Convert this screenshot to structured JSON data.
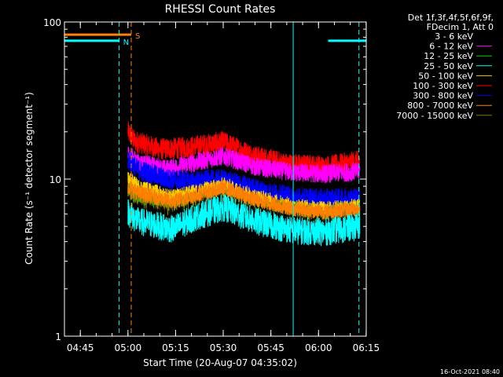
{
  "chart_data": {
    "type": "line",
    "title": "RHESSI Count Rates",
    "xlabel": "Start Time (20-Aug-07 04:35:02)",
    "ylabel": "Count Rate (s⁻¹ detector segment⁻¹)",
    "ylog": true,
    "ylim": [
      1,
      100
    ],
    "xlim_minutes": [
      4.97,
      100.0
    ],
    "x_ticks": [
      {
        "label": "04:45",
        "minute": 9.97
      },
      {
        "label": "05:00",
        "minute": 24.97
      },
      {
        "label": "05:15",
        "minute": 39.97
      },
      {
        "label": "05:30",
        "minute": 54.97
      },
      {
        "label": "05:45",
        "minute": 69.97
      },
      {
        "label": "06:00",
        "minute": 84.97
      },
      {
        "label": "06:15",
        "minute": 99.97
      }
    ],
    "y_ticks": [
      {
        "label": "1",
        "value": 1
      },
      {
        "label": "10",
        "value": 10
      },
      {
        "label": "100",
        "value": 100
      }
    ],
    "legend": {
      "placement": "top-right",
      "header": [
        "Det 1f,3f,4f,5f,6f,9f,",
        "FDecim 1, Att 0"
      ],
      "entries": [
        {
          "label": "3 - 6 keV",
          "color": "#000000"
        },
        {
          "label": "6 - 12 keV",
          "color": "#ff00ff"
        },
        {
          "label": "12 - 25 keV",
          "color": "#00cc00"
        },
        {
          "label": "25 - 50 keV",
          "color": "#00ffff"
        },
        {
          "label": "50 - 100 keV",
          "color": "#ffcc00"
        },
        {
          "label": "100 - 300 keV",
          "color": "#ff0000"
        },
        {
          "label": "300 - 800 keV",
          "color": "#0000ff"
        },
        {
          "label": "800 - 7000 keV",
          "color": "#ff8000"
        },
        {
          "label": "7000 - 15000 keV",
          "color": "#808000"
        }
      ]
    },
    "series": [
      {
        "label": "100 - 300 keV",
        "color": "#ff0000",
        "start": [
          24.97,
          20
        ],
        "points": [
          [
            26.97,
            17.5
          ],
          [
            34.97,
            15.5
          ],
          [
            42.97,
            15.8
          ],
          [
            54.97,
            17.2
          ],
          [
            64.97,
            14.0
          ],
          [
            74.97,
            12.5
          ],
          [
            86.97,
            12.0
          ],
          [
            97.97,
            13.0
          ]
        ],
        "noise": 0.07
      },
      {
        "label": "6 - 12 keV",
        "color": "#ff00ff",
        "start": [
          24.97,
          14.5
        ],
        "points": [
          [
            27.97,
            12.8
          ],
          [
            36.97,
            11.6
          ],
          [
            44.97,
            12.6
          ],
          [
            54.97,
            14.0
          ],
          [
            64.97,
            12.0
          ],
          [
            76.97,
            11.0
          ],
          [
            86.97,
            10.8
          ],
          [
            97.97,
            11.2
          ]
        ],
        "noise": 0.06
      },
      {
        "label": "300 - 800 keV",
        "color": "#0000ff",
        "start": [
          24.97,
          13.5
        ],
        "points": [
          [
            27.97,
            11.5
          ],
          [
            36.97,
            10.0
          ],
          [
            44.97,
            9.6
          ],
          [
            54.97,
            9.9
          ],
          [
            64.97,
            8.6
          ],
          [
            76.97,
            7.6
          ],
          [
            86.97,
            7.4
          ],
          [
            97.97,
            7.6
          ]
        ],
        "noise": 0.07
      },
      {
        "label": "12 - 25 keV",
        "color": "#00cc00",
        "start": [
          24.97,
          9.2
        ],
        "points": [
          [
            27.97,
            8.0
          ],
          [
            38.97,
            6.9
          ],
          [
            46.97,
            7.7
          ],
          [
            54.97,
            8.2
          ],
          [
            64.97,
            7.0
          ],
          [
            76.97,
            6.2
          ],
          [
            86.97,
            6.0
          ],
          [
            97.97,
            6.3
          ]
        ],
        "noise": 0.07
      },
      {
        "label": "50 - 100 keV",
        "color": "#ffcc00",
        "start": [
          24.97,
          10.0
        ],
        "points": [
          [
            27.97,
            8.8
          ],
          [
            38.97,
            7.5
          ],
          [
            46.97,
            8.2
          ],
          [
            54.97,
            9.0
          ],
          [
            64.97,
            7.6
          ],
          [
            76.97,
            6.6
          ],
          [
            86.97,
            6.3
          ],
          [
            97.97,
            6.6
          ]
        ],
        "noise": 0.06
      },
      {
        "label": "7000 - 15000 keV",
        "color": "#808000",
        "start": [
          24.97,
          8.5
        ],
        "points": [
          [
            27.97,
            7.6
          ],
          [
            38.97,
            6.6
          ],
          [
            46.97,
            7.4
          ],
          [
            54.97,
            8.0
          ],
          [
            64.97,
            6.9
          ],
          [
            76.97,
            6.1
          ],
          [
            86.97,
            5.9
          ],
          [
            97.97,
            6.2
          ]
        ],
        "noise": 0.06
      },
      {
        "label": "3 - 6 keV",
        "color": "#000000",
        "start": [
          24.97,
          6.5
        ],
        "points": [
          [
            27.97,
            6.0
          ],
          [
            38.97,
            5.6
          ],
          [
            46.97,
            6.3
          ],
          [
            54.97,
            7.0
          ],
          [
            64.97,
            6.0
          ],
          [
            76.97,
            5.2
          ],
          [
            86.97,
            5.0
          ],
          [
            97.97,
            5.4
          ]
        ],
        "noise": 0.08
      },
      {
        "label": "800 - 7000 keV",
        "color": "#ff8000",
        "start": [
          24.97,
          9.0
        ],
        "points": [
          [
            27.97,
            8.2
          ],
          [
            38.97,
            7.2
          ],
          [
            46.97,
            8.0
          ],
          [
            54.97,
            8.8
          ],
          [
            64.97,
            7.4
          ],
          [
            76.97,
            6.5
          ],
          [
            86.97,
            6.2
          ],
          [
            97.97,
            6.5
          ]
        ],
        "noise": 0.05
      },
      {
        "label": "25 - 50 keV",
        "color": "#00ffff",
        "start": [
          24.97,
          6.2
        ],
        "points": [
          [
            27.97,
            5.4
          ],
          [
            38.97,
            4.8
          ],
          [
            46.97,
            5.8
          ],
          [
            54.97,
            6.6
          ],
          [
            64.97,
            5.4
          ],
          [
            76.97,
            4.7
          ],
          [
            86.97,
            4.6
          ],
          [
            97.97,
            5.0
          ]
        ],
        "noise": 0.09
      }
    ],
    "annotations": [
      {
        "type": "flag-bar",
        "color": "#00ffff",
        "label": "N",
        "segments": [
          [
            4.97,
            22.2
          ],
          [
            88.0,
            100.0
          ]
        ],
        "y": 76
      },
      {
        "type": "flag-bar",
        "color": "#ff8000",
        "label": "S",
        "segments": [
          [
            4.97,
            26.0
          ]
        ],
        "y": 83
      },
      {
        "type": "vline",
        "color": "#00ffff",
        "style": "dashed",
        "x": 22.2
      },
      {
        "type": "vline",
        "color": "#ff8000",
        "style": "dashed",
        "x": 26.0
      },
      {
        "type": "vline",
        "color": "#00ffff",
        "style": "solid",
        "x": 77.0
      },
      {
        "type": "vline",
        "color": "#00ffff",
        "style": "dashed",
        "x": 97.7
      },
      {
        "type": "vline",
        "color": "#00ffff",
        "style": "solid",
        "x": 4.97
      }
    ],
    "footer_timestamp": "16-Oct-2021 08:40"
  }
}
